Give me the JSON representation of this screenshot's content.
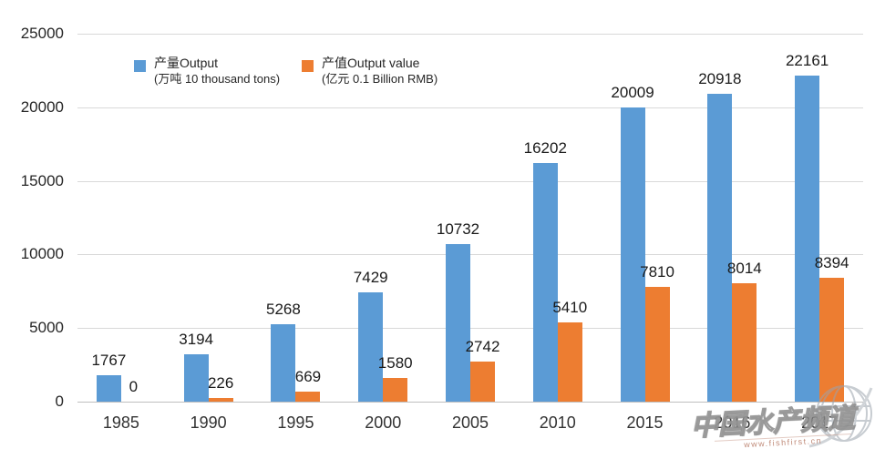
{
  "chart_data": {
    "type": "bar",
    "title": "",
    "categories": [
      "1985",
      "1990",
      "1995",
      "2000",
      "2005",
      "2010",
      "2015",
      "2016",
      "2017"
    ],
    "series": [
      {
        "name": "产量Output",
        "unit": "(万吨 10 thousand tons)",
        "color": "#5B9BD5",
        "values": [
          1767,
          3194,
          5268,
          7429,
          10732,
          16202,
          20009,
          20918,
          22161
        ]
      },
      {
        "name": "产值Output value",
        "unit": "(亿元 0.1 Billion RMB)",
        "color": "#ED7D31",
        "values": [
          0,
          226,
          669,
          1580,
          2742,
          5410,
          7810,
          8014,
          8394
        ]
      }
    ],
    "ylim": [
      0,
      25000
    ],
    "yticks": [
      0,
      5000,
      10000,
      15000,
      20000,
      25000
    ],
    "grid": true,
    "legend_position": "top",
    "data_labels": true
  },
  "colors": {
    "gridline": "#d9d9d9",
    "axis_line": "#bfbfbf",
    "label_text": "#1a1a1a"
  },
  "watermark": {
    "title": "中国水产频道",
    "url": "www.fishfirst.cn",
    "globe_icon": "globe-wireframe-icon"
  }
}
